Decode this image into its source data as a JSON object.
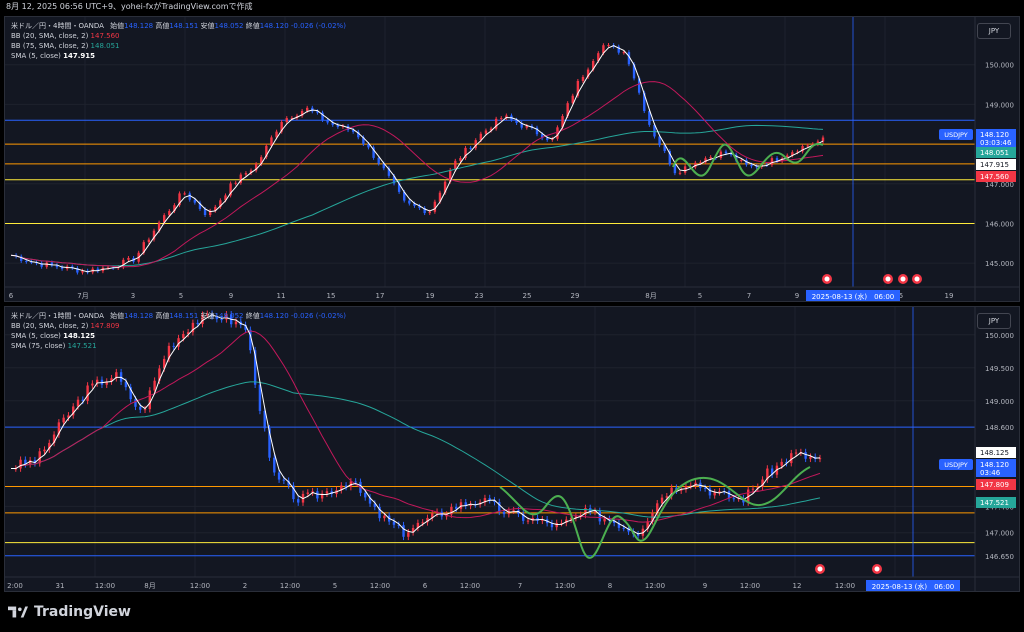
{
  "topbar": {
    "text": "8月 12, 2025 06:56 UTC+9、yohei-fxがTradingView.comで作成"
  },
  "colors": {
    "bg": "#131722",
    "up": "#f23645",
    "down": "#2962ff",
    "sma5": "#ffffff",
    "bb20": "#c2185b",
    "sma75": "#26a69a",
    "hline_blue": "#2962ff",
    "hline_orange": "#ff9800",
    "hline_yellow": "#ffeb3b",
    "pattern": "#4caf50"
  },
  "panel1": {
    "legend": {
      "title": "米ドル／円・4時間・OANDA",
      "ohlc": [
        "始値",
        "148.128",
        "高値",
        "148.151",
        "安値",
        "148.052",
        "終値",
        "148.120",
        "-0.026 (-0.02%)"
      ],
      "bb20": {
        "label": "BB (20, SMA, close, 2)",
        "value": "147.560"
      },
      "bb75": {
        "label": "BB (75, SMA, close, 2)",
        "value": "148.051"
      },
      "sma5": {
        "label": "SMA (5, close)",
        "value": "147.915"
      }
    },
    "currency": "JPY",
    "price_ticks": [
      "150.000",
      "149.000",
      "148.000",
      "147.000",
      "146.000",
      "145.000"
    ],
    "price_tags": [
      {
        "label": "USDJPY",
        "value": "148.120",
        "sub": "03:03:46",
        "color": "#2962ff"
      },
      {
        "value": "148.051",
        "color": "#26a69a"
      },
      {
        "value": "147.915",
        "color": "#ffffff"
      },
      {
        "value": "147.560",
        "color": "#f23645"
      }
    ],
    "time_ticks": [
      "6",
      "7月",
      "3",
      "5",
      "9",
      "11",
      "15",
      "17",
      "19",
      "23",
      "25",
      "29",
      "8月",
      "5",
      "7",
      "9",
      "5",
      "19"
    ],
    "crosshair_label": "2025-08-13 (水)　06:00"
  },
  "panel2": {
    "legend": {
      "title": "米ドル／円・1時間・OANDA",
      "ohlc": [
        "始値",
        "148.128",
        "高値",
        "148.151",
        "安値",
        "148.052",
        "終値",
        "148.120",
        "-0.026 (-0.02%)"
      ],
      "bb20": {
        "label": "BB (20, SMA, close, 2)",
        "value": "147.809"
      },
      "sma5": {
        "label": "SMA (5, close)",
        "value": "148.125"
      },
      "sma75": {
        "label": "SMA (75, close)",
        "value": "147.521"
      }
    },
    "currency": "JPY",
    "price_ticks": [
      "150.000",
      "149.500",
      "149.000",
      "148.600",
      "147.400",
      "147.000",
      "146.650"
    ],
    "price_tags": [
      {
        "value": "148.125",
        "color": "#ffffff"
      },
      {
        "label": "USDJPY",
        "value": "148.120",
        "sub": "03:46",
        "color": "#2962ff"
      },
      {
        "value": "147.809",
        "color": "#f23645"
      },
      {
        "value": "147.521",
        "color": "#26a69a"
      }
    ],
    "time_ticks": [
      "2:00",
      "31",
      "12:00",
      "8月",
      "12:00",
      "2",
      "12:00",
      "5",
      "12:00",
      "6",
      "12:00",
      "7",
      "12:00",
      "8",
      "12:00",
      "9",
      "12:00",
      "12",
      "12:00"
    ],
    "crosshair_label": "2025-08-13 (水)　06:00"
  },
  "footer": {
    "brand": "TradingView"
  }
}
